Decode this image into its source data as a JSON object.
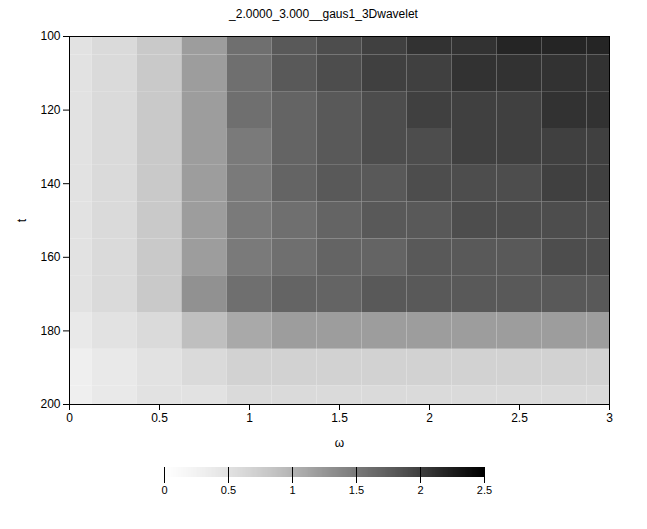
{
  "chart_data": {
    "type": "heatmap",
    "title": "_2.0000_3.000__gaus1_3Dwavelet",
    "xlabel": "ω",
    "ylabel": "t",
    "x": [
      0,
      0.25,
      0.5,
      0.75,
      1,
      1.25,
      1.5,
      1.75,
      2,
      2.25,
      2.5,
      2.75,
      3
    ],
    "y": [
      100,
      110,
      120,
      130,
      140,
      150,
      160,
      170,
      180,
      190,
      200
    ],
    "values": [
      [
        0.5,
        0.6,
        0.8,
        1.2,
        1.6,
        1.8,
        1.9,
        2.0,
        2.1,
        2.1,
        2.2,
        2.2,
        2.2
      ],
      [
        0.5,
        0.6,
        0.8,
        1.2,
        1.6,
        1.8,
        1.9,
        2.0,
        2.0,
        2.1,
        2.1,
        2.1,
        2.1
      ],
      [
        0.5,
        0.6,
        0.8,
        1.2,
        1.6,
        1.7,
        1.8,
        1.9,
        2.0,
        2.0,
        2.0,
        2.1,
        2.1
      ],
      [
        0.5,
        0.6,
        0.8,
        1.2,
        1.5,
        1.7,
        1.8,
        1.9,
        1.9,
        2.0,
        2.0,
        2.0,
        2.0
      ],
      [
        0.5,
        0.6,
        0.8,
        1.2,
        1.5,
        1.7,
        1.8,
        1.8,
        1.9,
        1.9,
        1.9,
        2.0,
        2.0
      ],
      [
        0.5,
        0.6,
        0.8,
        1.2,
        1.5,
        1.6,
        1.7,
        1.8,
        1.8,
        1.9,
        1.9,
        1.9,
        1.9
      ],
      [
        0.5,
        0.6,
        0.8,
        1.2,
        1.5,
        1.6,
        1.7,
        1.7,
        1.8,
        1.8,
        1.8,
        1.9,
        1.9
      ],
      [
        0.5,
        0.6,
        0.8,
        1.3,
        1.6,
        1.7,
        1.7,
        1.8,
        1.8,
        1.8,
        1.8,
        1.8,
        1.8
      ],
      [
        0.4,
        0.5,
        0.6,
        0.9,
        1.1,
        1.2,
        1.2,
        1.2,
        1.2,
        1.2,
        1.2,
        1.2,
        1.2
      ],
      [
        0.3,
        0.4,
        0.5,
        0.6,
        0.7,
        0.7,
        0.7,
        0.7,
        0.7,
        0.7,
        0.7,
        0.7,
        0.7
      ],
      [
        0.3,
        0.4,
        0.5,
        0.5,
        0.6,
        0.6,
        0.6,
        0.6,
        0.6,
        0.6,
        0.6,
        0.6,
        0.6
      ]
    ],
    "xlim": [
      0,
      3
    ],
    "xticks": [
      0,
      0.5,
      1,
      1.5,
      2,
      2.5,
      3
    ],
    "ylim": [
      100,
      200
    ],
    "yticks": [
      100,
      120,
      140,
      160,
      180,
      200
    ],
    "zlim": [
      0,
      2.5
    ],
    "zticks": [
      0,
      0.5,
      1,
      1.5,
      2,
      2.5
    ],
    "color": "greys"
  }
}
